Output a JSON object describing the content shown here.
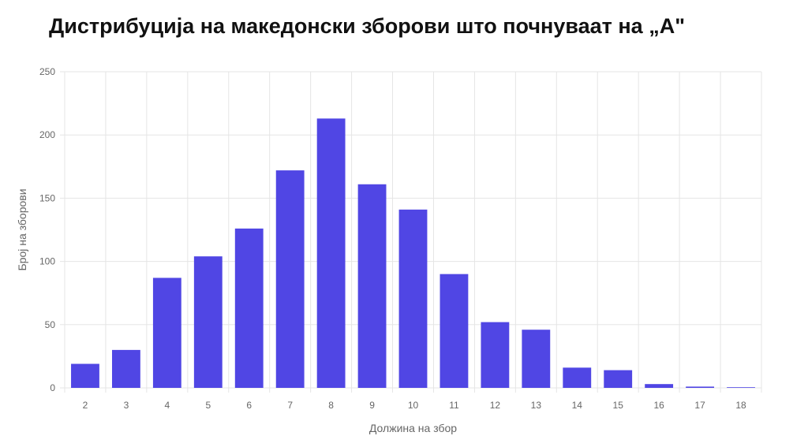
{
  "chart_data": {
    "type": "bar",
    "title": "Дистрибуција на македонски зборови што почнуваат на „А\"",
    "xlabel": "Должина на збор",
    "ylabel": "Број на зборови",
    "categories": [
      "2",
      "3",
      "4",
      "5",
      "6",
      "7",
      "8",
      "9",
      "10",
      "11",
      "12",
      "13",
      "14",
      "15",
      "16",
      "17",
      "18"
    ],
    "values": [
      19,
      30,
      87,
      104,
      126,
      172,
      213,
      161,
      141,
      90,
      52,
      46,
      16,
      14,
      3,
      1,
      0.5
    ],
    "ylim": [
      0,
      250
    ],
    "yticks": [
      0,
      50,
      100,
      150,
      200,
      250
    ],
    "grid": true,
    "bar_color": "#5046e4",
    "grid_color": "#e5e5e5"
  }
}
